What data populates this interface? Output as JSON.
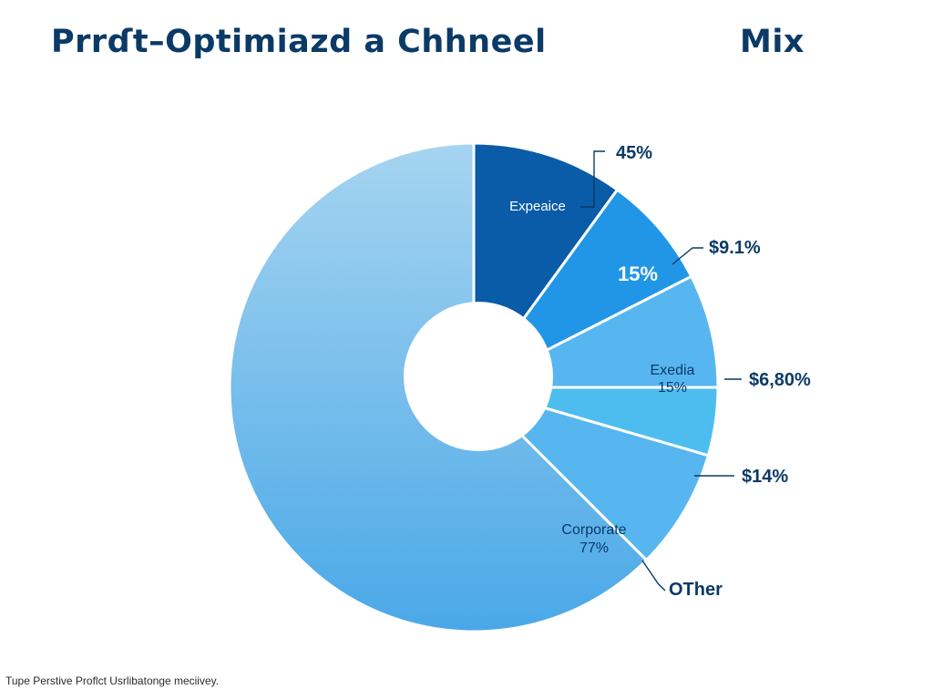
{
  "colors": {
    "title": "#0b3a66",
    "label_dark": "#0b3a66",
    "footnote": "#2b2b2b",
    "large_slice_light": "#a6d4f0",
    "large_slice_dark": "#4aa8e8",
    "slice_1": "#0a5ba8",
    "slice_2": "#2196e6",
    "slice_3": "#57b6ef",
    "slice_4": "#4dbdf0",
    "slice_5": "#57b6ef",
    "separator": "#ffffff",
    "hole": "#ffffff"
  },
  "title": {
    "part1": "Prrɗt–Optimiazd a Chhneel",
    "part2": "Mix"
  },
  "footnote": "Tupe Perstive Proflct Usrlibatonge meciivey.",
  "chart_data": {
    "type": "pie",
    "title": "Prrɗt–Optimiazd a Chhneel Mix",
    "legend": "none",
    "hole": "small",
    "slices": [
      {
        "inner_label": "Expeaice",
        "callout": "45%",
        "share": 0.1,
        "color": "#0a5ba8"
      },
      {
        "inner_label": "15%",
        "callout": "$9.1%",
        "share": 0.075,
        "color": "#2196e6"
      },
      {
        "inner_label": "Exedia",
        "inner_sub": "15%",
        "callout": "$6,80%",
        "share": 0.075,
        "color": "#57b6ef"
      },
      {
        "inner_label": "",
        "callout": "$14%",
        "share": 0.045,
        "color": "#4dbdf0"
      },
      {
        "inner_label": "Corporate",
        "inner_sub": "77%",
        "callout": "OTher",
        "share": 0.08,
        "color": "#57b6ef"
      },
      {
        "inner_label": "",
        "callout": "",
        "share": 0.625,
        "color": "#a6d4f0"
      }
    ]
  }
}
